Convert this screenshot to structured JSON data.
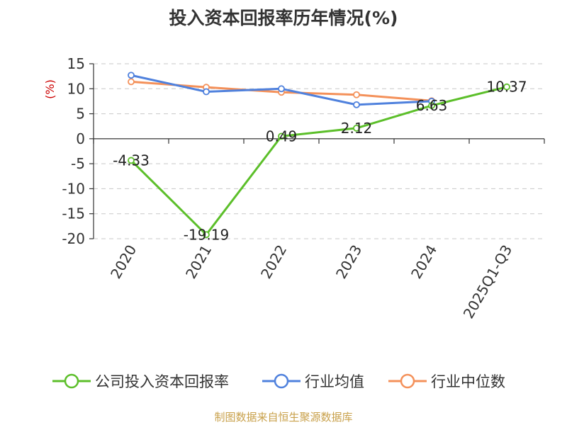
{
  "page": {
    "title": "投入资本回报率历年情况(%)",
    "source_note": "制图数据来自恒生聚源数据库"
  },
  "chart_data": {
    "type": "line",
    "title": "投入资本回报率历年情况(%)",
    "ylabel": "(%)",
    "xlabel": "",
    "categories": [
      "2020",
      "2021",
      "2022",
      "2023",
      "2024",
      "2025Q1-Q3"
    ],
    "ylim": [
      -20,
      15
    ],
    "yticks": [
      15,
      10,
      5,
      0,
      -5,
      -10,
      -15,
      -20
    ],
    "grid": true,
    "legend_position": "bottom",
    "series": [
      {
        "name": "公司投入资本回报率",
        "color": "#5cbf2a",
        "values": [
          -4.33,
          -19.19,
          0.49,
          2.12,
          6.63,
          10.37
        ],
        "labels": [
          "-4.33",
          "-19.19",
          "0.49",
          "2.12",
          "6.63",
          "10.37"
        ]
      },
      {
        "name": "行业均值",
        "color": "#4f81dd",
        "values": [
          12.7,
          9.4,
          10.0,
          6.8,
          7.5,
          null
        ]
      },
      {
        "name": "行业中位数",
        "color": "#f4915a",
        "values": [
          11.4,
          10.3,
          9.3,
          8.8,
          7.6,
          null
        ]
      }
    ]
  }
}
